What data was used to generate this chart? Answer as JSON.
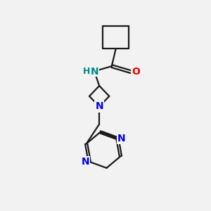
{
  "background_color": "#f2f2f2",
  "bond_color": "#1a1a1a",
  "nitrogen_color": "#0000ee",
  "oxygen_color": "#ee0000",
  "nh_color": "#008888",
  "line_width": 1.6,
  "figsize": [
    3.0,
    3.0
  ],
  "dpi": 100,
  "xlim": [
    0,
    10
  ],
  "ylim": [
    0,
    10
  ]
}
